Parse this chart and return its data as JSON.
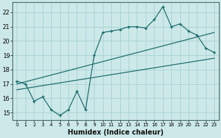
{
  "xlabel": "Humidex (Indice chaleur)",
  "xlim": [
    -0.5,
    23.5
  ],
  "ylim": [
    14.5,
    22.7
  ],
  "yticks": [
    15,
    16,
    17,
    18,
    19,
    20,
    21,
    22
  ],
  "xticks": [
    0,
    1,
    2,
    3,
    4,
    5,
    6,
    7,
    8,
    9,
    10,
    11,
    12,
    13,
    14,
    15,
    16,
    17,
    18,
    19,
    20,
    21,
    22,
    23
  ],
  "bg_color": "#cce8e8",
  "grid_color": "#aad4d4",
  "line_color": "#1a6b6b",
  "line1_x": [
    0,
    1,
    2,
    3,
    4,
    5,
    6,
    7,
    8,
    9,
    10,
    11,
    12,
    13,
    14,
    15,
    16,
    17,
    18,
    19,
    20,
    21,
    22,
    23
  ],
  "line1_y": [
    17.2,
    17.0,
    15.8,
    16.1,
    15.2,
    14.8,
    15.2,
    16.5,
    15.2,
    19.0,
    20.6,
    20.7,
    20.8,
    21.0,
    21.0,
    20.9,
    21.5,
    22.4,
    21.0,
    21.2,
    20.7,
    20.4,
    19.5,
    19.2
  ],
  "line2_x": [
    0,
    23
  ],
  "line2_y": [
    17.0,
    20.6
  ],
  "line3_x": [
    0,
    23
  ],
  "line3_y": [
    16.6,
    18.8
  ]
}
